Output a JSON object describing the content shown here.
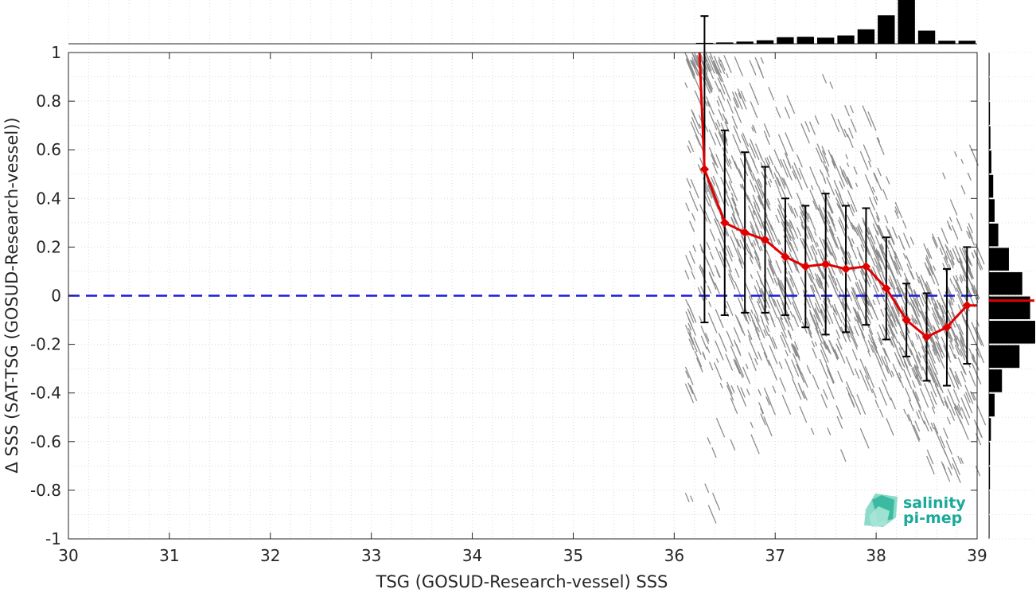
{
  "chart_data": {
    "type": "scatter",
    "xlabel": "TSG (GOSUD-Research-vessel) SSS",
    "ylabel": "Δ SSS (SAT-TSG (GOSUD-Research-vessel))",
    "xlim": [
      30,
      39
    ],
    "ylim": [
      -1,
      1
    ],
    "x_ticks": [
      30,
      31,
      32,
      33,
      34,
      35,
      36,
      37,
      38,
      39
    ],
    "y_ticks": [
      -1,
      -0.8,
      -0.6,
      -0.4,
      -0.2,
      0,
      0.2,
      0.4,
      0.6,
      0.8,
      1
    ],
    "y_tick_labels": [
      "-1",
      "-0.8",
      "-0.6",
      "-0.4",
      "-0.2",
      "0",
      "0.2",
      "0.4",
      "0.6",
      "0.8",
      "1"
    ],
    "grid": true,
    "reference_line": {
      "y": 0,
      "style": "dashed",
      "color": "#1a1adb"
    },
    "scatter_color": "#808080",
    "scatter_extent": {
      "x_range": [
        36.1,
        39
      ],
      "note_y_range": [
        -1,
        1
      ]
    },
    "binned_stats": {
      "color": "#e00000",
      "errorbar_color": "#000000",
      "x": [
        36.3,
        36.5,
        36.7,
        36.9,
        37.1,
        37.3,
        37.5,
        37.7,
        37.9,
        38.1,
        38.3,
        38.5,
        38.7,
        38.9
      ],
      "mean": [
        0.52,
        0.3,
        0.26,
        0.23,
        0.16,
        0.12,
        0.13,
        0.11,
        0.12,
        0.03,
        -0.1,
        -0.17,
        -0.13,
        -0.04
      ],
      "std": [
        0.63,
        0.38,
        0.33,
        0.3,
        0.24,
        0.25,
        0.29,
        0.26,
        0.24,
        0.21,
        0.15,
        0.18,
        0.24,
        0.24
      ],
      "line_start": [
        36.25,
        1.0
      ],
      "line_end": [
        39.0,
        -0.04
      ]
    },
    "top_histogram": {
      "bin_centers": [
        36.3,
        36.5,
        36.7,
        36.9,
        37.1,
        37.3,
        37.5,
        37.7,
        37.9,
        38.1,
        38.3,
        38.5,
        38.7,
        38.9
      ],
      "relative_counts": [
        0.02,
        0.03,
        0.05,
        0.08,
        0.15,
        0.16,
        0.14,
        0.19,
        0.33,
        0.65,
        1.0,
        0.3,
        0.07,
        0.07
      ]
    },
    "right_histogram": {
      "bin_centers": [
        0.95,
        0.85,
        0.75,
        0.65,
        0.55,
        0.45,
        0.35,
        0.25,
        0.15,
        0.05,
        -0.05,
        -0.15,
        -0.25,
        -0.35,
        -0.45,
        -0.55,
        -0.65,
        -0.75,
        -0.85,
        -0.95
      ],
      "relative_counts": [
        0.01,
        0.01,
        0.02,
        0.03,
        0.05,
        0.09,
        0.12,
        0.2,
        0.43,
        0.72,
        0.89,
        1.0,
        0.66,
        0.28,
        0.12,
        0.04,
        0.02,
        0.02,
        0.01,
        0.01
      ],
      "mean_marker": {
        "y": -0.02,
        "color": "#e00000"
      }
    }
  },
  "logo": {
    "line1": "salinity",
    "line2": "pi-mep",
    "color": "#1aa99a"
  }
}
